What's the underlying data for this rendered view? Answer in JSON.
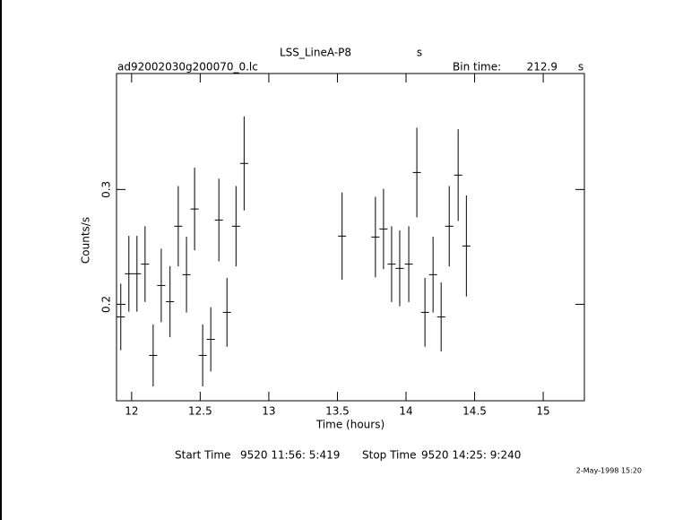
{
  "chart_data": {
    "type": "errorbar",
    "title": "LSS_LineA-P8",
    "title_unit": "s",
    "file": "ad92002030g200070_0.lc",
    "bin_time_label": "Bin time:",
    "bin_time": 212.9,
    "bin_time_unit": "s",
    "xlabel": "Time (hours)",
    "ylabel": "Counts/s",
    "x": [
      11.921,
      11.98,
      12.039,
      12.098,
      12.157,
      12.216,
      12.28,
      12.34,
      12.4,
      12.459,
      12.518,
      12.577,
      12.636,
      12.695,
      12.761,
      12.82,
      13.534,
      13.777,
      13.836,
      13.895,
      13.954,
      14.02,
      14.079,
      14.138,
      14.197,
      14.256,
      14.315,
      14.38,
      14.44
    ],
    "values": [
      0.189,
      0.2266,
      0.2266,
      0.235,
      0.1555,
      0.2164,
      0.2023,
      0.268,
      0.2258,
      0.283,
      0.1555,
      0.1695,
      0.2734,
      0.193,
      0.268,
      0.3227,
      0.2594,
      0.2586,
      0.2656,
      0.235,
      0.2313,
      0.235,
      0.3148,
      0.193,
      0.2258,
      0.189,
      0.268,
      0.3125,
      0.2508
    ],
    "errors": [
      0.029,
      0.033,
      0.033,
      0.033,
      0.027,
      0.032,
      0.031,
      0.035,
      0.033,
      0.036,
      0.027,
      0.028,
      0.036,
      0.03,
      0.035,
      0.041,
      0.038,
      0.035,
      0.035,
      0.033,
      0.033,
      0.033,
      0.039,
      0.03,
      0.033,
      0.03,
      0.035,
      0.04,
      0.044
    ],
    "color": "#000000",
    "xlim": [
      11.89,
      15.3
    ],
    "ylim": [
      0.116,
      0.401
    ],
    "xticks": [
      12,
      12.5,
      13,
      13.5,
      14,
      14.5,
      15
    ],
    "yticks": [
      0.2,
      0.3
    ],
    "start_label": "Start Time",
    "start": "9520 11:56: 5:419",
    "stop_label": "Stop Time",
    "stop": "9520 14:25: 9:240",
    "date": "2-May-1998 15:20"
  }
}
